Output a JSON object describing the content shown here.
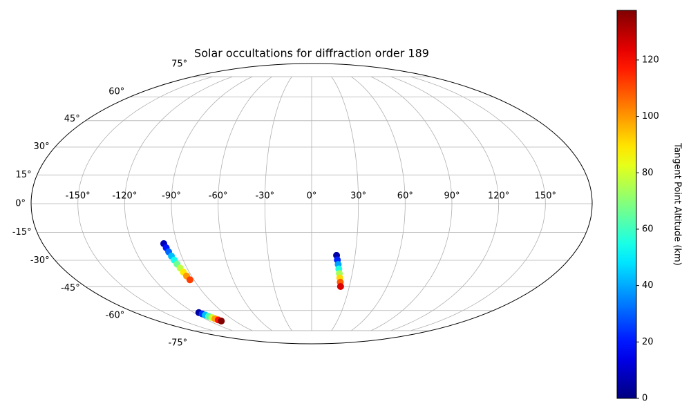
{
  "chart_data": {
    "type": "scatter",
    "projection": "mollweide",
    "title": "Solar occultations for diffraction order 189",
    "colorbar_label": "Tangent Point Altitude (km)",
    "colormap": "jet",
    "clim": [
      0,
      137.6
    ],
    "cticks": [
      0,
      20,
      40,
      60,
      80,
      100,
      120
    ],
    "xlim": [
      -180,
      180
    ],
    "ylim": [
      -90,
      90
    ],
    "xticks": [
      {
        "value": -150,
        "label": "-150°"
      },
      {
        "value": -120,
        "label": "-120°"
      },
      {
        "value": -90,
        "label": "-90°"
      },
      {
        "value": -60,
        "label": "-60°"
      },
      {
        "value": -30,
        "label": "-30°"
      },
      {
        "value": 0,
        "label": "0°"
      },
      {
        "value": 30,
        "label": "30°"
      },
      {
        "value": 60,
        "label": "60°"
      },
      {
        "value": 90,
        "label": "90°"
      },
      {
        "value": 120,
        "label": "120°"
      },
      {
        "value": 150,
        "label": "150°"
      }
    ],
    "yticks": [
      {
        "value": -75,
        "label": "-75°"
      },
      {
        "value": -60,
        "label": "-60°"
      },
      {
        "value": -45,
        "label": "-45°"
      },
      {
        "value": -30,
        "label": "-30°"
      },
      {
        "value": -15,
        "label": "-15°"
      },
      {
        "value": 0,
        "label": "0°"
      },
      {
        "value": 15,
        "label": "15°"
      },
      {
        "value": 30,
        "label": "30°"
      },
      {
        "value": 45,
        "label": "45°"
      },
      {
        "value": 60,
        "label": "60°"
      },
      {
        "value": 75,
        "label": "75°"
      }
    ],
    "grid": true,
    "series": [
      {
        "x": [
          -99,
          -98.3,
          -97.7,
          -97,
          -96.3,
          -95.7,
          -95,
          -94.3,
          -93.7,
          -93
        ],
        "y": [
          -21,
          -23.2,
          -25.4,
          -27.7,
          -29.9,
          -32.1,
          -34.3,
          -36.6,
          -38.8,
          -41
        ],
        "c": [
          8,
          20,
          31,
          43,
          54,
          66,
          77,
          89,
          100,
          112
        ]
      },
      {
        "x": [
          -115,
          -113.7,
          -112.4,
          -111.1,
          -109.9,
          -108.6,
          -107.3,
          -106
        ],
        "y": [
          -61.4,
          -62.3,
          -63.1,
          -64,
          -64.9,
          -65.7,
          -66.6,
          -67.4
        ],
        "c": [
          5,
          24,
          43,
          62,
          80,
          99,
          118,
          137
        ]
      },
      {
        "x": [
          17.2,
          18,
          18.9,
          19.7,
          20.5,
          21.3,
          22.2,
          23
        ],
        "y": [
          -27.3,
          -29.8,
          -32.3,
          -34.8,
          -37.4,
          -39.9,
          -42.4,
          -44.9
        ],
        "c": [
          5,
          22,
          39,
          56,
          74,
          91,
          108,
          125
        ]
      }
    ]
  }
}
